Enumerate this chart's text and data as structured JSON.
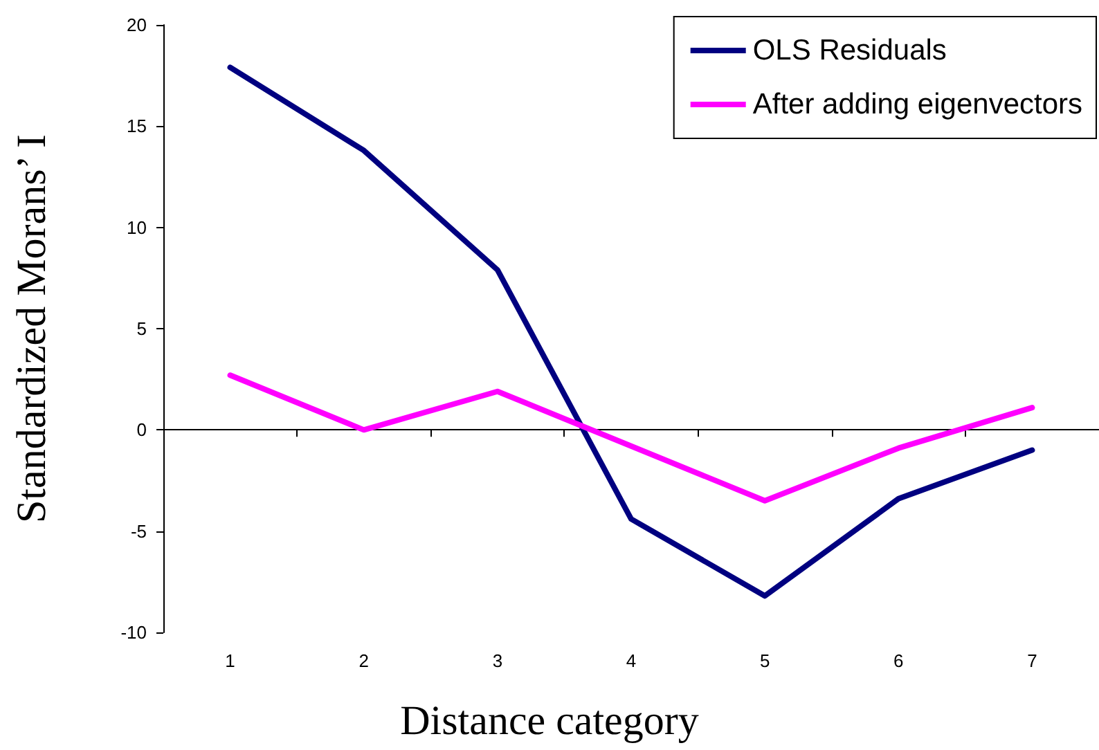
{
  "chart_data": {
    "type": "line",
    "annotations": [
      "Distance category"
    ],
    "ylabel": "Standardized Morans’ I",
    "categories": [
      "1",
      "2",
      "3",
      "4",
      "5",
      "6",
      "7"
    ],
    "series": [
      {
        "name": "OLS Residuals",
        "color": "#000080",
        "values": [
          17.9,
          13.8,
          7.9,
          -4.4,
          -8.2,
          -3.4,
          -1.0
        ]
      },
      {
        "name": "After adding eigenvectors",
        "color": "#ff00ff",
        "values": [
          2.7,
          0,
          1.9,
          -0.8,
          -3.5,
          -0.9,
          1.1
        ]
      }
    ],
    "ylim": [
      -10,
      20
    ],
    "yticks": [
      -10,
      -5,
      0,
      5,
      10,
      15,
      20
    ],
    "legend": "top right",
    "marker": "none",
    "line_style": "solid"
  }
}
